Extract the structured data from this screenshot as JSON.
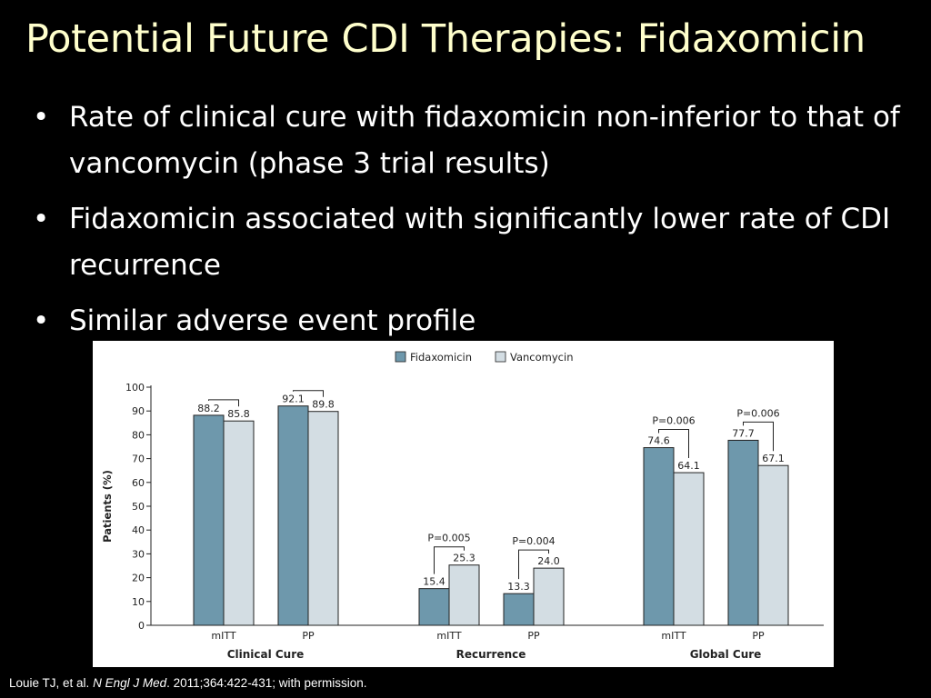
{
  "slide": {
    "title": "Potential Future CDI Therapies: Fidaxomicin",
    "bullet_symbol": "•",
    "bullets": [
      "Rate of clinical cure with fidaxomicin non-inferior to that of vancomycin (phase 3 trial results)",
      "Fidaxomicin associated with significantly lower rate of CDI recurrence",
      "Similar adverse event profile"
    ],
    "citation": {
      "authors": "Louie TJ, et al. ",
      "journal": "N Engl J Med",
      "rest": ". 2011;364:422-431; with permission."
    }
  },
  "colors": {
    "background": "#000000",
    "title": "#FFFFCC",
    "text": "#FFFFFF",
    "fidaxomicin": "#6E98AC",
    "vancomycin": "#D3DDE3"
  },
  "chart_data": {
    "type": "bar",
    "ylabel": "Patients (%)",
    "ylim": [
      0,
      100
    ],
    "yticks": [
      0,
      10,
      20,
      30,
      40,
      50,
      60,
      70,
      80,
      90,
      100
    ],
    "legend_position": "top-center",
    "series": [
      {
        "name": "Fidaxomicin",
        "color": "#6E98AC"
      },
      {
        "name": "Vancomycin",
        "color": "#D3DDE3"
      }
    ],
    "groups": [
      {
        "label": "Clinical Cure",
        "categories": [
          {
            "label": "mITT",
            "values": [
              88.2,
              85.8
            ],
            "labels": [
              "88.2",
              "85.8"
            ],
            "pvalue": ""
          },
          {
            "label": "PP",
            "values": [
              92.1,
              89.8
            ],
            "labels": [
              "92.1",
              "89.8"
            ],
            "pvalue": ""
          }
        ]
      },
      {
        "label": "Recurrence",
        "categories": [
          {
            "label": "mITT",
            "values": [
              15.4,
              25.3
            ],
            "labels": [
              "15.4",
              "25.3"
            ],
            "pvalue": "P=0.005"
          },
          {
            "label": "PP",
            "values": [
              13.3,
              24.0
            ],
            "labels": [
              "13.3",
              "24.0"
            ],
            "pvalue": "P=0.004"
          }
        ]
      },
      {
        "label": "Global Cure",
        "categories": [
          {
            "label": "mITT",
            "values": [
              74.6,
              64.1
            ],
            "labels": [
              "74.6",
              "64.1"
            ],
            "pvalue": "P=0.006"
          },
          {
            "label": "PP",
            "values": [
              77.7,
              67.1
            ],
            "labels": [
              "77.7",
              "67.1"
            ],
            "pvalue": "P=0.006"
          }
        ]
      }
    ]
  }
}
